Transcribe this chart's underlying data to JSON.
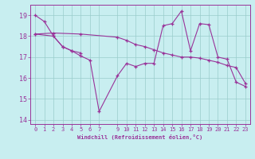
{
  "xlabel": "Windchill (Refroidissement éolien,°C)",
  "background_color": "#c8eef0",
  "line_color": "#993399",
  "grid_color": "#99cccc",
  "ylim": [
    13.8,
    19.5
  ],
  "xlim": [
    -0.5,
    23.5
  ],
  "yticks": [
    14,
    15,
    16,
    17,
    18,
    19
  ],
  "xticks": [
    0,
    1,
    2,
    3,
    4,
    5,
    6,
    7,
    9,
    10,
    11,
    12,
    13,
    14,
    15,
    16,
    17,
    18,
    19,
    20,
    21,
    22,
    23
  ],
  "series": [
    {
      "x": [
        0,
        1,
        2,
        3,
        4,
        5
      ],
      "y": [
        19.0,
        18.7,
        18.0,
        17.5,
        17.3,
        17.2
      ]
    },
    {
      "x": [
        0,
        2,
        3,
        4,
        5,
        6,
        7,
        9,
        10,
        11,
        12,
        13,
        14,
        15,
        16,
        17,
        18,
        19,
        20,
        21,
        22,
        23
      ],
      "y": [
        18.1,
        18.0,
        17.5,
        17.3,
        17.05,
        16.85,
        14.4,
        16.1,
        16.7,
        16.55,
        16.7,
        16.7,
        18.5,
        18.6,
        19.2,
        17.3,
        18.6,
        18.55,
        17.0,
        16.9,
        15.8,
        15.6
      ]
    },
    {
      "x": [
        0,
        2,
        5,
        9,
        10,
        11,
        12,
        13,
        14,
        15,
        16,
        17,
        18,
        19,
        20,
        21,
        22,
        23
      ],
      "y": [
        18.1,
        18.15,
        18.1,
        17.95,
        17.8,
        17.6,
        17.5,
        17.35,
        17.2,
        17.1,
        17.0,
        17.0,
        16.95,
        16.85,
        16.75,
        16.6,
        16.5,
        15.75
      ]
    }
  ]
}
